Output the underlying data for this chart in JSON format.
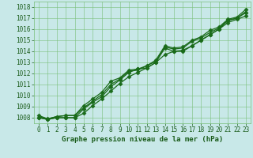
{
  "xlabel": "Graphe pression niveau de la mer (hPa)",
  "xlim": [
    -0.5,
    23.5
  ],
  "ylim": [
    1007.5,
    1018.5
  ],
  "yticks": [
    1008,
    1009,
    1010,
    1011,
    1012,
    1013,
    1014,
    1015,
    1016,
    1017,
    1018
  ],
  "xticks": [
    0,
    1,
    2,
    3,
    4,
    5,
    6,
    7,
    8,
    9,
    10,
    11,
    12,
    13,
    14,
    15,
    16,
    17,
    18,
    19,
    20,
    21,
    22,
    23
  ],
  "background_color": "#c8e8e8",
  "grid_color": "#7abf7a",
  "line_color": "#1a6b1a",
  "lines": [
    [
      1008.0,
      1007.85,
      1008.0,
      1008.0,
      1008.0,
      1008.8,
      1009.4,
      1009.9,
      1010.8,
      1011.4,
      1012.1,
      1012.4,
      1012.5,
      1013.0,
      1014.3,
      1014.0,
      1014.0,
      1014.5,
      1015.0,
      1015.5,
      1016.0,
      1016.8,
      1017.0,
      1017.5
    ],
    [
      1008.0,
      1007.85,
      1008.0,
      1008.0,
      1008.0,
      1008.4,
      1009.1,
      1009.7,
      1010.4,
      1011.1,
      1011.7,
      1012.1,
      1012.5,
      1013.0,
      1013.7,
      1014.0,
      1014.1,
      1014.5,
      1015.0,
      1015.5,
      1016.0,
      1016.6,
      1016.9,
      1017.2
    ],
    [
      1008.1,
      1007.9,
      1008.1,
      1008.2,
      1008.2,
      1008.9,
      1009.5,
      1010.1,
      1011.0,
      1011.5,
      1012.2,
      1012.3,
      1012.7,
      1013.1,
      1014.4,
      1014.2,
      1014.3,
      1014.9,
      1015.2,
      1015.7,
      1016.1,
      1016.8,
      1017.0,
      1017.6
    ],
    [
      1008.2,
      1007.9,
      1008.1,
      1008.2,
      1008.2,
      1009.1,
      1009.7,
      1010.3,
      1011.3,
      1011.6,
      1012.3,
      1012.4,
      1012.7,
      1013.2,
      1014.5,
      1014.3,
      1014.4,
      1015.0,
      1015.3,
      1015.9,
      1016.2,
      1016.9,
      1017.1,
      1017.8
    ]
  ],
  "marker_styles": [
    "D",
    "D",
    "^",
    "D"
  ],
  "marker_size": 2.5,
  "line_width": 0.9,
  "font_color": "#1a5c1a",
  "label_fontsize": 6.5,
  "tick_fontsize": 5.5
}
